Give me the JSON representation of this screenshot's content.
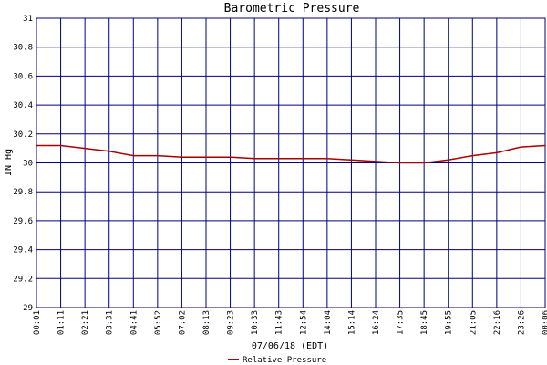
{
  "chart_data": {
    "type": "line",
    "title": "Barometric Pressure",
    "xlabel": "07/06/18 (EDT)",
    "ylabel": "IN Hg",
    "ylim": [
      29,
      31
    ],
    "yticks": [
      "29",
      "29.2",
      "29.4",
      "29.6",
      "29.8",
      "30",
      "30.2",
      "30.4",
      "30.6",
      "30.8",
      "31"
    ],
    "xticks": [
      "00:01",
      "01:11",
      "02:21",
      "03:31",
      "04:41",
      "05:52",
      "07:02",
      "08:13",
      "09:23",
      "10:33",
      "11:43",
      "12:54",
      "14:04",
      "15:14",
      "16:24",
      "17:35",
      "18:45",
      "19:55",
      "21:05",
      "22:16",
      "23:26",
      "00:06"
    ],
    "grid": true,
    "legend_position": "bottom-center",
    "colors": {
      "series": "#aa0000",
      "grid": "#000080",
      "background": "#ffffff"
    },
    "series": [
      {
        "name": "Relative Pressure",
        "x": [
          "00:01",
          "01:11",
          "02:21",
          "03:31",
          "04:41",
          "05:52",
          "07:02",
          "08:13",
          "09:23",
          "10:33",
          "11:43",
          "12:54",
          "14:04",
          "15:14",
          "16:24",
          "17:35",
          "18:45",
          "19:55",
          "21:05",
          "22:16",
          "23:26",
          "00:06"
        ],
        "values": [
          30.12,
          30.12,
          30.1,
          30.08,
          30.05,
          30.05,
          30.04,
          30.04,
          30.04,
          30.03,
          30.03,
          30.03,
          30.03,
          30.02,
          30.01,
          30.0,
          30.0,
          30.02,
          30.05,
          30.07,
          30.11,
          30.12
        ]
      }
    ]
  }
}
